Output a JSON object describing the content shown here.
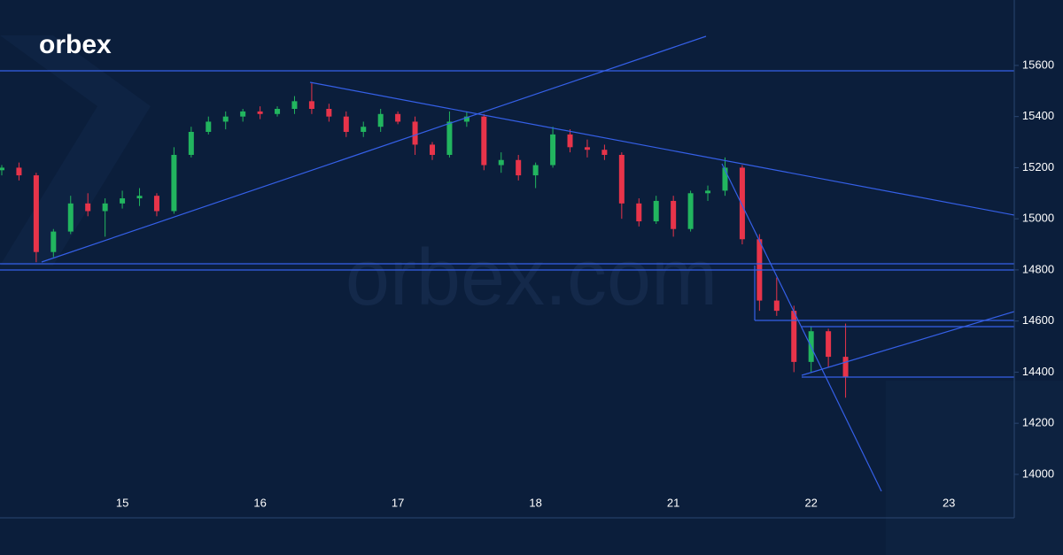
{
  "logo": "orbex",
  "watermark": "orbex.com",
  "chart_data": {
    "type": "candlestick",
    "categories": [
      null,
      null,
      null,
      null,
      null,
      null,
      null,
      "15",
      null,
      null,
      null,
      null,
      null,
      null,
      null,
      "16",
      null,
      null,
      null,
      null,
      null,
      null,
      null,
      "17",
      null,
      null,
      null,
      null,
      null,
      null,
      null,
      "18",
      null,
      null,
      null,
      null,
      null,
      null,
      null,
      "21",
      null,
      null,
      null,
      null,
      null,
      null,
      null,
      "22",
      null,
      null,
      null,
      null,
      null,
      null,
      null,
      "23",
      null,
      null,
      null
    ],
    "open": [
      15190,
      15200,
      15170,
      14870,
      14950,
      15060,
      15030,
      15060,
      15080,
      15090,
      15030,
      15250,
      15340,
      15380,
      15400,
      15420,
      15410,
      15430,
      15460,
      15430,
      15400,
      15340,
      15360,
      15410,
      15380,
      15290,
      15250,
      15380,
      15400,
      15210,
      15230,
      15170,
      15210,
      15330,
      15280,
      15270,
      15250,
      15060,
      14990,
      15070,
      14960,
      15100,
      15110,
      15200,
      14920,
      14680,
      14640,
      14440,
      14560,
      14460,
      null,
      null,
      null,
      null,
      null,
      null,
      null,
      null,
      null
    ],
    "high": [
      15210,
      15220,
      15180,
      14960,
      15090,
      15100,
      15080,
      15110,
      15120,
      15100,
      15280,
      15360,
      15400,
      15420,
      15430,
      15440,
      15440,
      15480,
      15530,
      15450,
      15420,
      15380,
      15430,
      15420,
      15400,
      15300,
      15420,
      15420,
      15410,
      15260,
      15250,
      15220,
      15360,
      15350,
      15310,
      15290,
      15260,
      15080,
      15090,
      15090,
      15110,
      15130,
      15240,
      15210,
      14940,
      14770,
      14660,
      14580,
      14570,
      14590,
      null,
      null,
      null,
      null,
      null,
      null,
      null,
      null,
      null
    ],
    "low": [
      15170,
      15150,
      14830,
      14850,
      14940,
      15010,
      14930,
      15040,
      15050,
      15010,
      15020,
      15240,
      15330,
      15350,
      15380,
      15390,
      15400,
      15410,
      15410,
      15380,
      15320,
      15320,
      15340,
      15370,
      15250,
      15230,
      15240,
      15360,
      15190,
      15180,
      15150,
      15120,
      15200,
      15260,
      15240,
      15230,
      15000,
      14970,
      14980,
      14930,
      14950,
      15070,
      15090,
      14900,
      14640,
      14620,
      14400,
      14400,
      14420,
      14300,
      null,
      null,
      null,
      null,
      null,
      null,
      null,
      null,
      null
    ],
    "close": [
      15200,
      15170,
      14870,
      14950,
      15060,
      15030,
      15060,
      15080,
      15090,
      15030,
      15250,
      15340,
      15380,
      15400,
      15420,
      15410,
      15430,
      15460,
      15430,
      15400,
      15340,
      15360,
      15410,
      15380,
      15290,
      15250,
      15380,
      15400,
      15210,
      15230,
      15170,
      15210,
      15330,
      15280,
      15270,
      15250,
      15060,
      14990,
      15070,
      14960,
      15100,
      15110,
      15200,
      14920,
      14680,
      14640,
      14440,
      14560,
      14460,
      14380,
      null,
      null,
      null,
      null,
      null,
      null,
      null,
      null,
      null
    ],
    "up_color": "#22b55f",
    "down_color": "#e8344a",
    "ylim": [
      13830,
      15856
    ],
    "yticks": [
      14000,
      14200,
      14400,
      14600,
      14800,
      15000,
      15200,
      15400,
      15600
    ]
  }
}
